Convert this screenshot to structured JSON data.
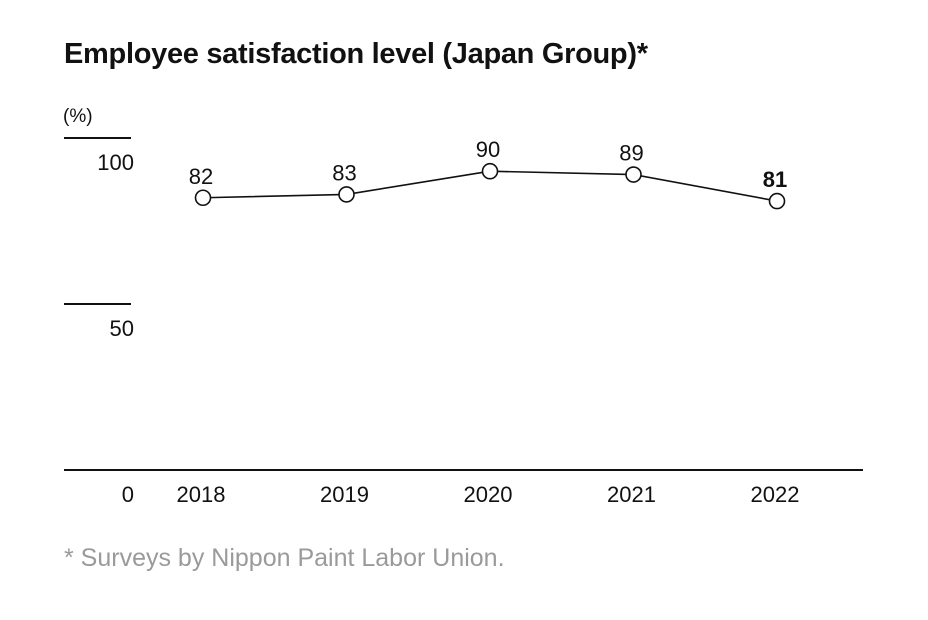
{
  "chart_data": {
    "type": "line",
    "title": "Employee satisfaction level (Japan Group)*",
    "ylabel": "(%)",
    "xlabel": "",
    "ylim": [
      0,
      100
    ],
    "yticks": [
      "0",
      "50",
      "100"
    ],
    "categories": [
      "2018",
      "2019",
      "2020",
      "2021",
      "2022"
    ],
    "series": [
      {
        "name": "Employee satisfaction level",
        "values": [
          82,
          83,
          90,
          89,
          81
        ]
      }
    ],
    "grid": false,
    "footnote": "* Surveys by Nippon Paint Labor Union."
  }
}
